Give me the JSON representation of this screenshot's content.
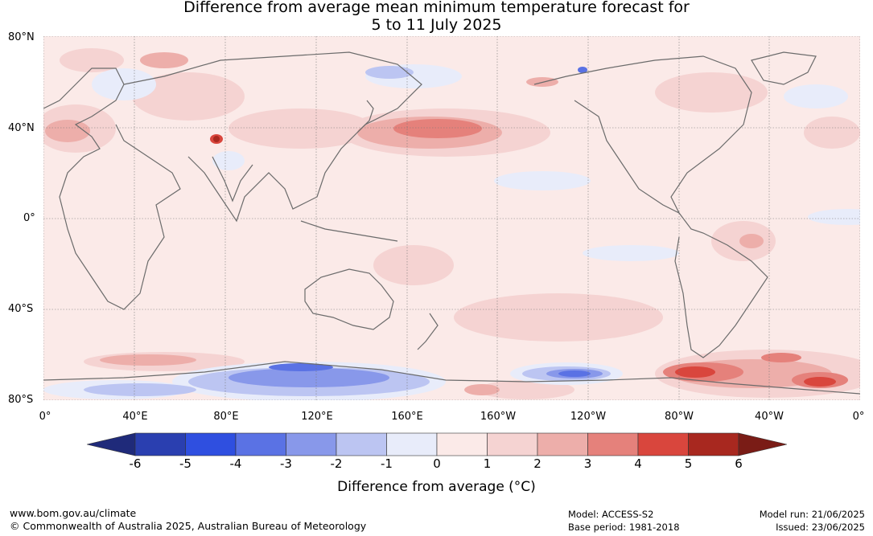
{
  "title": {
    "line1": "Difference from average mean minimum temperature forecast for",
    "line2": "5 to 11 July 2025"
  },
  "map": {
    "projection": "equirectangular",
    "background_color": "#fbeae8",
    "gridlines": true,
    "lat_labels": [
      "80°N",
      "40°N",
      "0°",
      "40°S",
      "80°S"
    ],
    "lon_labels": [
      "0°",
      "40°E",
      "80°E",
      "120°E",
      "160°E",
      "160°W",
      "120°W",
      "80°W",
      "40°W",
      "0°"
    ]
  },
  "colorbar": {
    "label": "Difference from average (°C)",
    "ticks": [
      "-6",
      "-5",
      "-4",
      "-3",
      "-2",
      "-1",
      "0",
      "1",
      "2",
      "3",
      "4",
      "5",
      "6"
    ],
    "colors": [
      "#1f2a7a",
      "#2a3fb0",
      "#2f4fe0",
      "#5a72e4",
      "#8898ea",
      "#bcc5f2",
      "#e8ecfa",
      "#fbeae8",
      "#f5d3d2",
      "#edaeaa",
      "#e5817b",
      "#d9463d",
      "#a8281f",
      "#7a1c16"
    ]
  },
  "footer": {
    "url": "www.bom.gov.au/climate",
    "copyright": "© Commonwealth of Australia 2025, Australian Bureau of Meteorology",
    "model": "Model: ACCESS-S2",
    "base_period": "Base period: 1981-2018",
    "model_run": "Model run: 21/06/2025",
    "issued": "Issued: 23/06/2025"
  }
}
